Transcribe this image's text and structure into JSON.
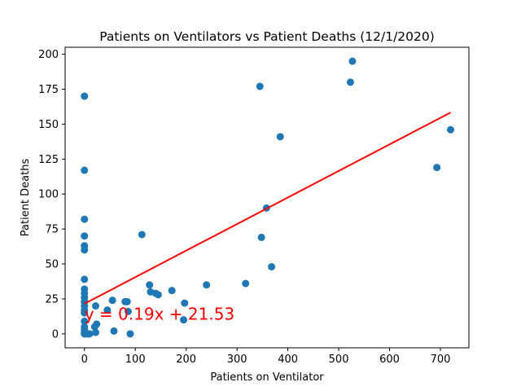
{
  "chart_data": {
    "type": "scatter",
    "title": "Patients on Ventilators vs Patient Deaths (12/1/2020)",
    "xlabel": "Patients on Ventilator",
    "ylabel": "Patient Deaths",
    "xlim": [
      -38,
      756
    ],
    "ylim": [
      -10,
      205
    ],
    "xticks": [
      0,
      100,
      200,
      300,
      400,
      500,
      600,
      700
    ],
    "yticks": [
      0,
      25,
      50,
      75,
      100,
      125,
      150,
      175,
      200
    ],
    "grid": false,
    "colors": {
      "points": "#1f77b4",
      "regression": "#ff0000",
      "annotation": "#ff0000"
    },
    "points": [
      [
        0,
        170
      ],
      [
        0,
        117
      ],
      [
        0,
        82
      ],
      [
        0,
        70
      ],
      [
        0,
        63
      ],
      [
        0,
        60
      ],
      [
        0,
        39
      ],
      [
        0,
        32
      ],
      [
        0,
        29
      ],
      [
        0,
        26
      ],
      [
        0,
        23
      ],
      [
        0,
        20
      ],
      [
        0,
        17
      ],
      [
        0,
        15
      ],
      [
        0,
        9
      ],
      [
        0,
        5
      ],
      [
        0,
        3
      ],
      [
        0,
        1
      ],
      [
        0,
        0
      ],
      [
        2,
        0
      ],
      [
        5,
        0
      ],
      [
        8,
        0
      ],
      [
        10,
        0
      ],
      [
        20,
        5
      ],
      [
        22,
        20
      ],
      [
        24,
        7
      ],
      [
        22,
        1
      ],
      [
        45,
        17
      ],
      [
        55,
        24
      ],
      [
        58,
        2
      ],
      [
        80,
        23
      ],
      [
        84,
        23
      ],
      [
        86,
        16
      ],
      [
        90,
        0
      ],
      [
        113,
        71
      ],
      [
        128,
        35
      ],
      [
        130,
        30
      ],
      [
        140,
        29
      ],
      [
        145,
        28
      ],
      [
        172,
        31
      ],
      [
        195,
        10
      ],
      [
        197,
        22
      ],
      [
        240,
        35
      ],
      [
        317,
        36
      ],
      [
        345,
        177
      ],
      [
        348,
        69
      ],
      [
        358,
        90
      ],
      [
        368,
        48
      ],
      [
        385,
        141
      ],
      [
        523,
        180
      ],
      [
        527,
        195
      ],
      [
        693,
        119
      ],
      [
        720,
        146
      ]
    ],
    "regression": {
      "slope": 0.19,
      "intercept": 21.53,
      "x_range": [
        0,
        720
      ],
      "label": "y = 0.19x + 21.53"
    },
    "annotation_position": {
      "x": 0,
      "y": 10
    }
  }
}
